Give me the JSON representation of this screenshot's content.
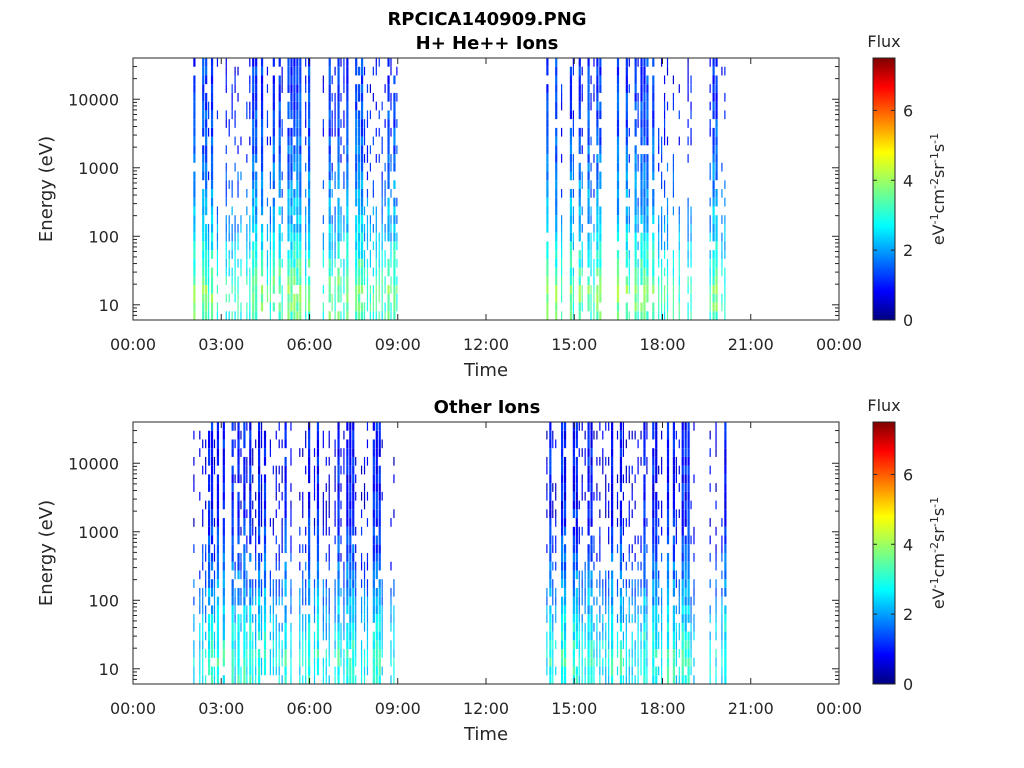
{
  "figure": {
    "title": "RPCICA140909.PNG"
  },
  "colormap_name": "jet",
  "chart_data": [
    {
      "type": "heatmap",
      "title": "H+ He++ Ions",
      "xlabel": "Time",
      "ylabel": "Energy (eV)",
      "x_ticks": [
        "00:00",
        "03:00",
        "06:00",
        "09:00",
        "12:00",
        "15:00",
        "18:00",
        "21:00",
        "00:00"
      ],
      "x_range_hours": [
        0,
        24
      ],
      "y_scale": "log",
      "y_ticks": [
        "10",
        "100",
        "1000",
        "10000"
      ],
      "y_range": [
        6,
        40000
      ],
      "colorbar": {
        "title": "Flux",
        "ticks": [
          "0",
          "2",
          "4",
          "6"
        ],
        "range": [
          0,
          7.5
        ],
        "units_base": "eV",
        "units_segments": [
          "cm",
          "sr",
          "s"
        ],
        "units_exp": "-1",
        "units_exp2": "-2"
      },
      "data_blocks_hours": [
        [
          2.05,
          8.95
        ],
        [
          14.05,
          19.15
        ],
        [
          19.6,
          20.2
        ]
      ],
      "flux_profile": {
        "energy": [
          6,
          15,
          50,
          150,
          600,
          2000,
          10000,
          40000
        ],
        "flux": [
          3.2,
          3.6,
          2.8,
          2.2,
          1.8,
          1.4,
          1.2,
          1.1
        ]
      }
    },
    {
      "type": "heatmap",
      "title": "Other Ions",
      "xlabel": "Time",
      "ylabel": "Energy (eV)",
      "x_ticks": [
        "00:00",
        "03:00",
        "06:00",
        "09:00",
        "12:00",
        "15:00",
        "18:00",
        "21:00",
        "00:00"
      ],
      "x_range_hours": [
        0,
        24
      ],
      "y_scale": "log",
      "y_ticks": [
        "10",
        "100",
        "1000",
        "10000"
      ],
      "y_range": [
        6,
        40000
      ],
      "colorbar": {
        "title": "Flux",
        "ticks": [
          "0",
          "2",
          "4",
          "6"
        ],
        "range": [
          0,
          7.5
        ],
        "units_base": "eV",
        "units_segments": [
          "cm",
          "sr",
          "s"
        ],
        "units_exp": "-1",
        "units_exp2": "-2"
      },
      "data_blocks_hours": [
        [
          2.05,
          8.95
        ],
        [
          14.05,
          19.15
        ],
        [
          19.6,
          20.2
        ]
      ],
      "flux_profile": {
        "energy": [
          6,
          15,
          50,
          150,
          600,
          2000,
          10000,
          40000
        ],
        "flux": [
          2.8,
          3.0,
          2.4,
          1.9,
          1.3,
          0.9,
          0.9,
          0.9
        ]
      }
    }
  ]
}
